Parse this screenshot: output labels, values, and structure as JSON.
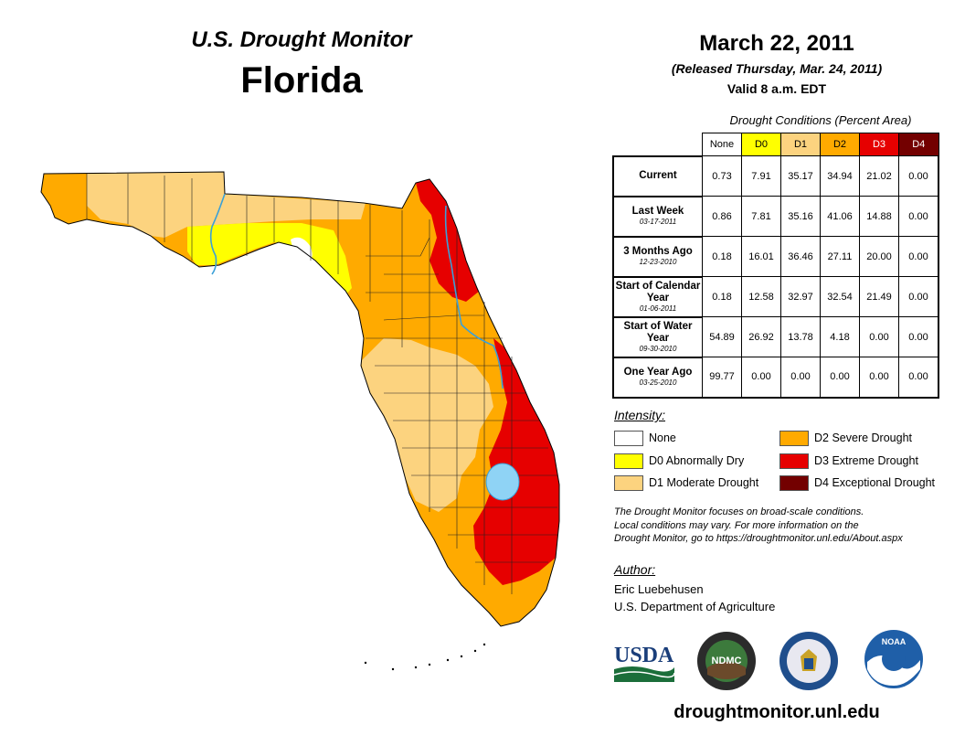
{
  "header": {
    "product": "U.S. Drought Monitor",
    "state": "Florida",
    "date": "March 22, 2011",
    "released": "(Released Thursday, Mar. 24, 2011)",
    "valid": "Valid 8 a.m. EDT"
  },
  "table": {
    "caption": "Drought Conditions (Percent Area)",
    "columns": [
      "None",
      "D0",
      "D1",
      "D2",
      "D3",
      "D4"
    ],
    "rows": [
      {
        "label": "Current",
        "date": "",
        "values": [
          "0.73",
          "7.91",
          "35.17",
          "34.94",
          "21.02",
          "0.00"
        ]
      },
      {
        "label": "Last Week",
        "date": "03-17-2011",
        "values": [
          "0.86",
          "7.81",
          "35.16",
          "41.06",
          "14.88",
          "0.00"
        ]
      },
      {
        "label": "3 Months Ago",
        "date": "12-23-2010",
        "values": [
          "0.18",
          "16.01",
          "36.46",
          "27.11",
          "20.00",
          "0.00"
        ]
      },
      {
        "label": "Start of Calendar Year",
        "date": "01-06-2011",
        "values": [
          "0.18",
          "12.58",
          "32.97",
          "32.54",
          "21.49",
          "0.00"
        ]
      },
      {
        "label": "Start of Water Year",
        "date": "09-30-2010",
        "values": [
          "54.89",
          "26.92",
          "13.78",
          "4.18",
          "0.00",
          "0.00"
        ]
      },
      {
        "label": "One Year Ago",
        "date": "03-25-2010",
        "values": [
          "99.77",
          "0.00",
          "0.00",
          "0.00",
          "0.00",
          "0.00"
        ]
      }
    ]
  },
  "legend": {
    "title": "Intensity:",
    "items": [
      {
        "label": "None",
        "color": "#ffffff"
      },
      {
        "label": "D0 Abnormally Dry",
        "color": "#ffff00"
      },
      {
        "label": "D1 Moderate Drought",
        "color": "#fcd37f"
      },
      {
        "label": "D2 Severe Drought",
        "color": "#ffaa00"
      },
      {
        "label": "D3 Extreme Drought",
        "color": "#e60000"
      },
      {
        "label": "D4 Exceptional Drought",
        "color": "#730000"
      }
    ]
  },
  "note": {
    "line1": "The Drought Monitor focuses on broad-scale conditions.",
    "line2": "Local conditions may vary. For more information on the",
    "line3": "Drought Monitor, go to https://droughtmonitor.unl.edu/About.aspx"
  },
  "author": {
    "title": "Author:",
    "name": "Eric Luebehusen",
    "org": "U.S. Department of Agriculture"
  },
  "logos": {
    "usda": "USDA",
    "ndmc": "NDMC",
    "noaa": "NOAA"
  },
  "url": "droughtmonitor.unl.edu",
  "colors": {
    "none": "#ffffff",
    "d0": "#ffff00",
    "d1": "#fcd37f",
    "d2": "#ffaa00",
    "d3": "#e60000",
    "d4": "#730000",
    "water": "#8fd3f5",
    "river": "#3aa0d8"
  }
}
